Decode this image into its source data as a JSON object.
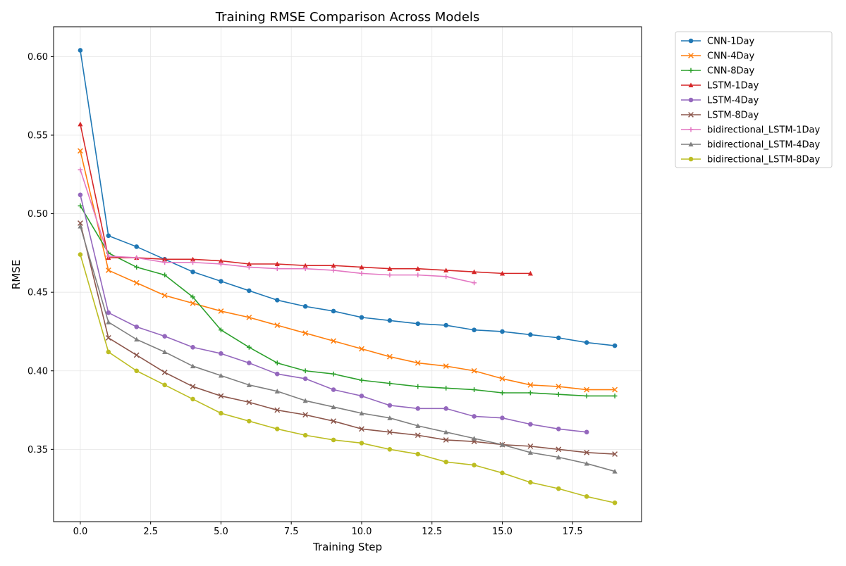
{
  "chart_data": {
    "type": "line",
    "title": "Training RMSE Comparison Across Models",
    "xlabel": "Training Step",
    "ylabel": "RMSE",
    "xlim": [
      -0.95,
      19.95
    ],
    "ylim": [
      0.304,
      0.619
    ],
    "x_ticks": [
      0.0,
      2.5,
      5.0,
      7.5,
      10.0,
      12.5,
      15.0,
      17.5
    ],
    "x_tick_labels": [
      "0.0",
      "2.5",
      "5.0",
      "7.5",
      "10.0",
      "12.5",
      "15.0",
      "17.5"
    ],
    "y_ticks": [
      0.35,
      0.4,
      0.45,
      0.5,
      0.55,
      0.6
    ],
    "y_tick_labels": [
      "0.35",
      "0.40",
      "0.45",
      "0.50",
      "0.55",
      "0.60"
    ],
    "grid": true,
    "legend_placement": "outside-top-right",
    "series": [
      {
        "name": "CNN-1Day",
        "color": "#1f77b4",
        "marker": "circle",
        "values": [
          0.604,
          0.486,
          0.479,
          0.471,
          0.463,
          0.457,
          0.451,
          0.445,
          0.441,
          0.438,
          0.434,
          0.432,
          0.43,
          0.429,
          0.426,
          0.425,
          0.423,
          0.421,
          0.418,
          0.416
        ]
      },
      {
        "name": "CNN-4Day",
        "color": "#ff7f0e",
        "marker": "x",
        "values": [
          0.54,
          0.464,
          0.456,
          0.448,
          0.443,
          0.438,
          0.434,
          0.429,
          0.424,
          0.419,
          0.414,
          0.409,
          0.405,
          0.403,
          0.4,
          0.395,
          0.391,
          0.39,
          0.388,
          0.388
        ]
      },
      {
        "name": "CNN-8Day",
        "color": "#2ca02c",
        "marker": "plus",
        "values": [
          0.505,
          0.475,
          0.466,
          0.461,
          0.447,
          0.426,
          0.415,
          0.405,
          0.4,
          0.398,
          0.394,
          0.392,
          0.39,
          0.389,
          0.388,
          0.386,
          0.386,
          0.385,
          0.384,
          0.384
        ]
      },
      {
        "name": "LSTM-1Day",
        "color": "#d62728",
        "marker": "triangle",
        "values": [
          0.557,
          0.472,
          0.472,
          0.471,
          0.471,
          0.47,
          0.468,
          0.468,
          0.467,
          0.467,
          0.466,
          0.465,
          0.465,
          0.464,
          0.463,
          0.462,
          0.462
        ]
      },
      {
        "name": "LSTM-4Day",
        "color": "#9467bd",
        "marker": "circle",
        "values": [
          0.512,
          0.437,
          0.428,
          0.422,
          0.415,
          0.411,
          0.405,
          0.398,
          0.395,
          0.388,
          0.384,
          0.378,
          0.376,
          0.376,
          0.371,
          0.37,
          0.366,
          0.363,
          0.361
        ]
      },
      {
        "name": "LSTM-8Day",
        "color": "#8c564b",
        "marker": "x",
        "values": [
          0.494,
          0.421,
          0.41,
          0.399,
          0.39,
          0.384,
          0.38,
          0.375,
          0.372,
          0.368,
          0.363,
          0.361,
          0.359,
          0.356,
          0.355,
          0.353,
          0.352,
          0.35,
          0.348,
          0.347
        ]
      },
      {
        "name": "bidirectional_LSTM-1Day",
        "color": "#e377c2",
        "marker": "plus",
        "values": [
          0.528,
          0.473,
          0.472,
          0.469,
          0.469,
          0.468,
          0.466,
          0.465,
          0.465,
          0.464,
          0.462,
          0.461,
          0.461,
          0.46,
          0.456
        ]
      },
      {
        "name": "bidirectional_LSTM-4Day",
        "color": "#7f7f7f",
        "marker": "triangle",
        "values": [
          0.492,
          0.431,
          0.42,
          0.412,
          0.403,
          0.397,
          0.391,
          0.387,
          0.381,
          0.377,
          0.373,
          0.37,
          0.365,
          0.361,
          0.357,
          0.353,
          0.348,
          0.345,
          0.341,
          0.336
        ]
      },
      {
        "name": "bidirectional_LSTM-8Day",
        "color": "#bcbd22",
        "marker": "circle",
        "values": [
          0.474,
          0.412,
          0.4,
          0.391,
          0.382,
          0.373,
          0.368,
          0.363,
          0.359,
          0.356,
          0.354,
          0.35,
          0.347,
          0.342,
          0.34,
          0.335,
          0.329,
          0.325,
          0.32,
          0.316
        ]
      }
    ]
  }
}
